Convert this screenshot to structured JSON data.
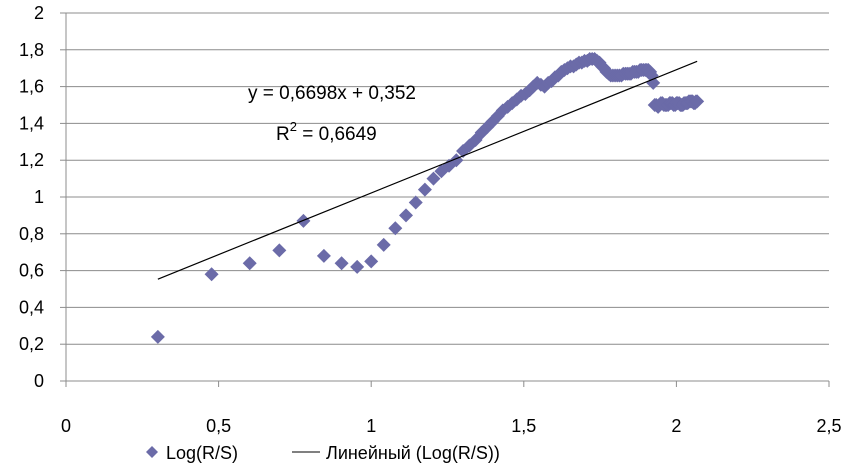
{
  "chart_data": {
    "type": "scatter",
    "title": "",
    "xlabel": "",
    "ylabel": "",
    "xlim": [
      0,
      2.5
    ],
    "ylim": [
      0,
      2
    ],
    "x_ticks": [
      "0",
      "0,5",
      "1",
      "1,5",
      "2",
      "2,5"
    ],
    "x_tick_values": [
      0,
      0.5,
      1,
      1.5,
      2,
      2.5
    ],
    "y_ticks": [
      "0",
      "0,2",
      "0,4",
      "0,6",
      "0,8",
      "1",
      "1,2",
      "1,4",
      "1,6",
      "1,8",
      "2"
    ],
    "y_tick_values": [
      0,
      0.2,
      0.4,
      0.6,
      0.8,
      1.0,
      1.2,
      1.4,
      1.6,
      1.8,
      2.0
    ],
    "grid": "horizontal",
    "legend_position": "bottom",
    "series": [
      {
        "name": "Log(R/S)",
        "marker": "diamond",
        "color": "#6B6BA8",
        "x": [
          0.301,
          0.477,
          0.602,
          0.699,
          0.778,
          0.845,
          0.903,
          0.954,
          1.0,
          1.041,
          1.079,
          1.114,
          1.146,
          1.176,
          1.204,
          1.23,
          1.255,
          1.279,
          1.301,
          1.322,
          1.342,
          1.362,
          1.38,
          1.398,
          1.415,
          1.431,
          1.447,
          1.462,
          1.477,
          1.491,
          1.505,
          1.519,
          1.531,
          1.544,
          1.556,
          1.568,
          1.58,
          1.591,
          1.602,
          1.613,
          1.623,
          1.633,
          1.643,
          1.653,
          1.663,
          1.672,
          1.681,
          1.69,
          1.699,
          1.708,
          1.716,
          1.724,
          1.732,
          1.74,
          1.748,
          1.756,
          1.763,
          1.771,
          1.778,
          1.785,
          1.792,
          1.799,
          1.806,
          1.813,
          1.82,
          1.826,
          1.833,
          1.839,
          1.845,
          1.851,
          1.857,
          1.863,
          1.869,
          1.875,
          1.881,
          1.886,
          1.892,
          1.898,
          1.903,
          1.908,
          1.914,
          1.919,
          1.924,
          1.929,
          1.934,
          1.94,
          1.944,
          1.949,
          1.954,
          1.959,
          1.964,
          1.968,
          1.973,
          1.978,
          1.982,
          1.987,
          1.991,
          1.996,
          2.0,
          2.004,
          2.009,
          2.013,
          2.017,
          2.021,
          2.025,
          2.029,
          2.033,
          2.037,
          2.041,
          2.045,
          2.049,
          2.053,
          2.057,
          2.061,
          2.064,
          2.068
        ],
        "y": [
          0.24,
          0.58,
          0.64,
          0.71,
          0.87,
          0.68,
          0.64,
          0.62,
          0.65,
          0.74,
          0.83,
          0.9,
          0.97,
          1.04,
          1.1,
          1.14,
          1.17,
          1.2,
          1.25,
          1.28,
          1.31,
          1.35,
          1.38,
          1.41,
          1.44,
          1.47,
          1.49,
          1.51,
          1.53,
          1.55,
          1.56,
          1.58,
          1.6,
          1.62,
          1.61,
          1.6,
          1.62,
          1.63,
          1.65,
          1.66,
          1.68,
          1.69,
          1.7,
          1.71,
          1.71,
          1.72,
          1.73,
          1.73,
          1.74,
          1.74,
          1.75,
          1.75,
          1.75,
          1.74,
          1.73,
          1.71,
          1.7,
          1.68,
          1.67,
          1.66,
          1.66,
          1.66,
          1.66,
          1.66,
          1.66,
          1.67,
          1.67,
          1.67,
          1.67,
          1.67,
          1.68,
          1.68,
          1.68,
          1.68,
          1.69,
          1.69,
          1.69,
          1.69,
          1.69,
          1.69,
          1.68,
          1.66,
          1.62,
          1.5,
          1.5,
          1.49,
          1.5,
          1.51,
          1.51,
          1.5,
          1.5,
          1.5,
          1.5,
          1.51,
          1.51,
          1.51,
          1.5,
          1.5,
          1.51,
          1.51,
          1.51,
          1.5,
          1.5,
          1.5,
          1.51,
          1.51,
          1.51,
          1.51,
          1.52,
          1.52,
          1.52,
          1.52,
          1.51,
          1.51,
          1.52,
          1.52
        ]
      },
      {
        "name": "Линейный (Log(R/S))",
        "type": "trendline",
        "color": "#000000",
        "slope": 0.6698,
        "intercept": 0.352,
        "x_range": [
          0.301,
          2.068
        ]
      }
    ],
    "annotations": {
      "equation": "y = 0,6698x + 0,352",
      "r_squared_prefix": "R",
      "r_squared_exponent": "2",
      "r_squared_value": " = 0,6649"
    }
  }
}
